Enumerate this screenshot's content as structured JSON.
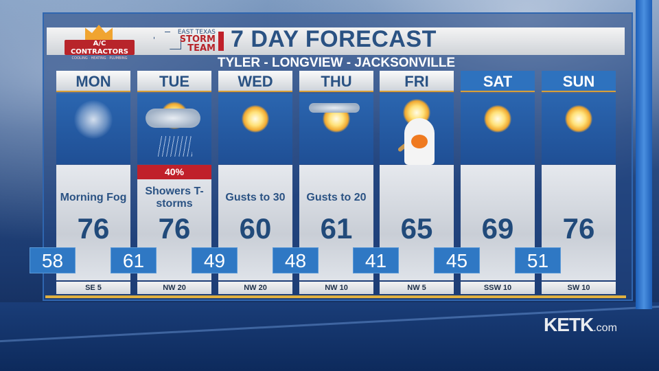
{
  "sponsor": {
    "name": "A/C CONTRACTORS",
    "tagline": "COOLING · HEATING · PLUMBING"
  },
  "brand": {
    "line1": "EAST TEXAS",
    "line2": "STORM",
    "line3": "TEAM"
  },
  "title": "7 DAY FORECAST",
  "subtitle": "TYLER - LONGVIEW - JACKSONVILLE",
  "days": [
    {
      "day": "MON",
      "icon": "fog-sun-icon",
      "condition": "Morning Fog",
      "high": "76",
      "low": "58",
      "wind": "SE 5",
      "pop": ""
    },
    {
      "day": "TUE",
      "icon": "thunderstorm-icon",
      "condition": "Showers T-storms",
      "high": "76",
      "low": "61",
      "wind": "NW 20",
      "pop": "40%"
    },
    {
      "day": "WED",
      "icon": "sun-icon",
      "condition": "Gusts to 30",
      "high": "60",
      "low": "49",
      "wind": "NW 20",
      "pop": ""
    },
    {
      "day": "THU",
      "icon": "mostly-sunny-icon",
      "condition": "Gusts to 20",
      "high": "61",
      "low": "48",
      "wind": "NW 10",
      "pop": ""
    },
    {
      "day": "FRI",
      "icon": "sun-halloween-dog-icon",
      "condition": "",
      "high": "65",
      "low": "41",
      "wind": "NW 5",
      "pop": ""
    },
    {
      "day": "SAT",
      "icon": "sun-icon",
      "condition": "",
      "high": "69",
      "low": "45",
      "wind": "SSW 10",
      "pop": ""
    },
    {
      "day": "SUN",
      "icon": "sun-icon",
      "condition": "",
      "high": "76",
      "low": "51",
      "wind": "SW 10",
      "pop": ""
    }
  ],
  "weekend_header_color": "#2e72be",
  "station": {
    "name": "KETK",
    "suffix": ".com"
  }
}
